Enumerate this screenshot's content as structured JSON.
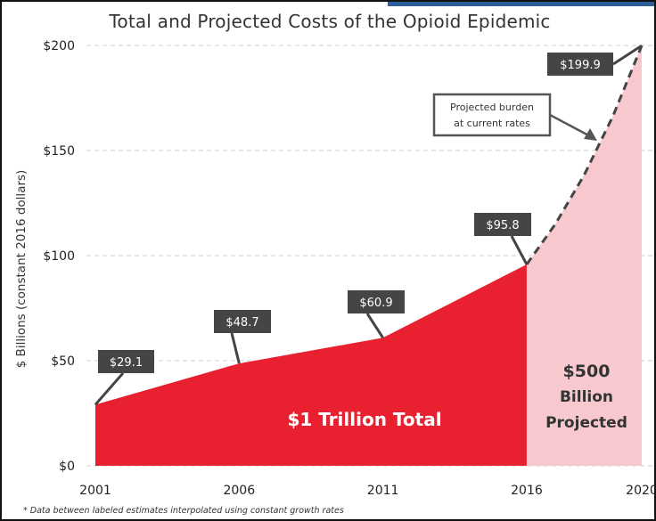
{
  "chart_data": {
    "type": "area",
    "title": "Total and Projected Costs of the Opioid Epidemic",
    "ylabel": "$ Billions (constant 2016 dollars)",
    "xlabel": "",
    "x_ticks": [
      "2001",
      "2006",
      "2011",
      "2016",
      "2020"
    ],
    "y_ticks": [
      "$0",
      "$50",
      "$100",
      "$150",
      "$200"
    ],
    "xlim": [
      2001,
      2020
    ],
    "ylim": [
      0,
      200
    ],
    "grid": "horizontal",
    "series": [
      {
        "values": [
          {
            "x": 2001,
            "y": 29.1
          },
          {
            "x": 2006,
            "y": 48.7
          },
          {
            "x": 2011,
            "y": 60.9
          },
          {
            "x": 2016,
            "y": 95.8
          }
        ],
        "color": "#e8202f",
        "style": "filled area"
      },
      {
        "values": [
          {
            "x": 2016,
            "y": 95.8
          },
          {
            "x": 2017,
            "y": 115.1
          },
          {
            "x": 2018,
            "y": 138.4
          },
          {
            "x": 2019,
            "y": 166.4
          },
          {
            "x": 2020,
            "y": 199.9
          }
        ],
        "color": "#f7c9ce",
        "style": "filled area with dashed outline"
      }
    ],
    "data_labels": [
      {
        "x": 2001,
        "y": 29.1,
        "text": "$29.1"
      },
      {
        "x": 2006,
        "y": 48.7,
        "text": "$48.7"
      },
      {
        "x": 2011,
        "y": 60.9,
        "text": "$60.9"
      },
      {
        "x": 2016,
        "y": 95.8,
        "text": "$95.8"
      },
      {
        "x": 2020,
        "y": 199.9,
        "text": "$199.9"
      }
    ],
    "annotations": {
      "projected_callout": [
        "Projected burden",
        "at current rates"
      ],
      "historic_region": "$1 Trillion Total",
      "projected_region": [
        "$500",
        "Billion",
        "Projected"
      ]
    },
    "footnote": "* Data between labeled estimates interpolated using constant growth rates"
  }
}
